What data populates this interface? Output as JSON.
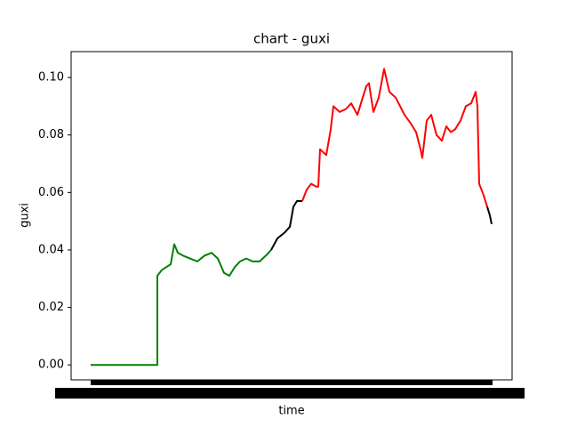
{
  "chart_data": {
    "type": "line",
    "title": "chart - guxi",
    "x_label": "time",
    "y_label": "guxi",
    "xlim": [
      -22,
      474
    ],
    "ylim": [
      -0.0052,
      0.109
    ],
    "yticks": [
      {
        "value": 0,
        "label": "0.00"
      },
      {
        "value": 0.02,
        "label": "0.02"
      },
      {
        "value": 0.04,
        "label": "0.04"
      },
      {
        "value": 0.06,
        "label": "0.06"
      },
      {
        "value": 0.08,
        "label": "0.08"
      },
      {
        "value": 0.1,
        "label": "0.10"
      }
    ],
    "grid": false,
    "series": [
      {
        "color": "#008000",
        "x": [
          0,
          75,
          75,
          80,
          85,
          90,
          94,
          98,
          104,
          112,
          120,
          128,
          136,
          143,
          150,
          156,
          162,
          168,
          175,
          182,
          190,
          197,
          203
        ],
        "values": [
          0,
          0,
          0.031,
          0.033,
          0.034,
          0.035,
          0.042,
          0.039,
          0.038,
          0.037,
          0.036,
          0.038,
          0.039,
          0.037,
          0.032,
          0.031,
          0.034,
          0.036,
          0.037,
          0.036,
          0.036,
          0.038,
          0.04
        ]
      },
      {
        "color": "#000000",
        "x": [
          203,
          210,
          218,
          224,
          228,
          232,
          238
        ],
        "values": [
          0.04,
          0.044,
          0.046,
          0.048,
          0.055,
          0.057,
          0.057
        ]
      },
      {
        "color": "#ff0000",
        "x": [
          238,
          243,
          248,
          254,
          256,
          258,
          265,
          270,
          273,
          280,
          287,
          293,
          300,
          306,
          310,
          313,
          318,
          324,
          330,
          336,
          343,
          348,
          353,
          360,
          366,
          371,
          373,
          378,
          383,
          389,
          395,
          400,
          405,
          410,
          416,
          422,
          428,
          433,
          435,
          437,
          442,
          446
        ],
        "values": [
          0.057,
          0.061,
          0.063,
          0.062,
          0.062,
          0.075,
          0.073,
          0.082,
          0.09,
          0.088,
          0.089,
          0.091,
          0.087,
          0.093,
          0.097,
          0.098,
          0.088,
          0.093,
          0.103,
          0.095,
          0.093,
          0.09,
          0.087,
          0.084,
          0.081,
          0.075,
          0.072,
          0.085,
          0.087,
          0.08,
          0.078,
          0.083,
          0.081,
          0.082,
          0.085,
          0.09,
          0.091,
          0.095,
          0.09,
          0.063,
          0.059,
          0.055
        ]
      },
      {
        "color": "#000000",
        "x": [
          446,
          449,
          451
        ],
        "values": [
          0.055,
          0.052,
          0.049
        ]
      }
    ]
  }
}
